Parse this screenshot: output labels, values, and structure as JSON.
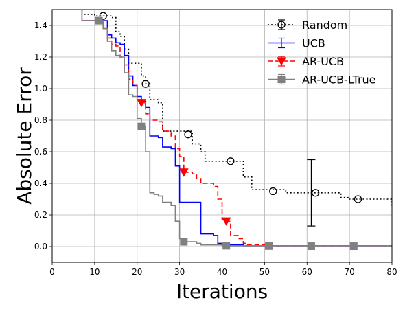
{
  "chart_data": {
    "type": "line",
    "title": "",
    "xlabel": "Iterations",
    "ylabel": "Absolute Error",
    "xlim": [
      0,
      80
    ],
    "ylim": [
      -0.1,
      1.5
    ],
    "x_ticks": [
      0,
      10,
      20,
      30,
      40,
      50,
      60,
      70,
      80
    ],
    "y_ticks": [
      0.0,
      0.2,
      0.4,
      0.6,
      0.8,
      1.0,
      1.2,
      1.4
    ],
    "grid": true,
    "legend_position": "top-right",
    "series": [
      {
        "name": "Random",
        "color": "#000000",
        "line_style": "dotted",
        "marker": "open-circle",
        "step": true,
        "x": [
          0,
          6,
          7,
          10,
          12,
          14,
          15,
          16,
          17,
          18,
          20,
          21,
          22,
          23,
          25,
          26,
          31,
          33,
          35,
          36,
          40,
          45,
          47,
          50,
          55,
          60,
          68,
          70,
          75,
          80
        ],
        "y": [
          1.55,
          1.55,
          1.47,
          1.46,
          1.46,
          1.45,
          1.36,
          1.33,
          1.25,
          1.16,
          1.16,
          1.08,
          1.03,
          0.93,
          0.91,
          0.73,
          0.73,
          0.65,
          0.6,
          0.54,
          0.54,
          0.44,
          0.36,
          0.36,
          0.34,
          0.34,
          0.31,
          0.3,
          0.3,
          0.25
        ],
        "markers": [
          [
            12,
            1.46
          ],
          [
            22,
            1.03
          ],
          [
            32,
            0.71
          ],
          [
            42,
            0.54
          ],
          [
            52,
            0.35
          ],
          [
            62,
            0.34
          ],
          [
            72,
            0.3
          ]
        ],
        "error_bar": {
          "x": 61,
          "low": 0.13,
          "high": 0.55
        }
      },
      {
        "name": "UCB",
        "color": "#0000ff",
        "line_style": "solid",
        "marker": "none",
        "step": true,
        "x": [
          0,
          6,
          7,
          11,
          13,
          14,
          15,
          16,
          17,
          18,
          19,
          20,
          21,
          22,
          23,
          25,
          26,
          28,
          29,
          30,
          33,
          35,
          38,
          39,
          40,
          45,
          80
        ],
        "y": [
          1.55,
          1.55,
          1.43,
          1.43,
          1.34,
          1.32,
          1.29,
          1.28,
          1.21,
          1.08,
          1.02,
          0.95,
          0.92,
          0.88,
          0.7,
          0.69,
          0.63,
          0.62,
          0.51,
          0.28,
          0.28,
          0.08,
          0.07,
          0.02,
          0.01,
          0.005,
          0.003
        ],
        "markers": []
      },
      {
        "name": "AR-UCB",
        "color": "#ff0000",
        "line_style": "dashed",
        "marker": "filled-triangle-down",
        "step": true,
        "x": [
          0,
          6,
          7,
          11,
          12,
          13,
          14,
          15,
          16,
          17,
          18,
          19,
          20,
          21,
          22,
          23,
          25,
          26,
          27,
          28,
          29,
          30,
          31,
          33,
          34,
          35,
          38,
          39,
          40,
          41,
          42,
          44,
          45,
          46,
          50,
          80
        ],
        "y": [
          1.55,
          1.55,
          1.43,
          1.43,
          1.38,
          1.32,
          1.28,
          1.27,
          1.2,
          1.15,
          1.06,
          1.02,
          0.93,
          0.91,
          0.84,
          0.8,
          0.79,
          0.73,
          0.73,
          0.7,
          0.62,
          0.57,
          0.47,
          0.46,
          0.43,
          0.4,
          0.38,
          0.3,
          0.17,
          0.16,
          0.07,
          0.05,
          0.02,
          0.01,
          0.005,
          0.003
        ],
        "markers": [
          [
            21,
            0.91
          ],
          [
            31,
            0.47
          ],
          [
            41,
            0.16
          ]
        ]
      },
      {
        "name": "AR-UCB-LTrue",
        "color": "#808080",
        "line_style": "solid",
        "marker": "filled-square",
        "step": true,
        "x": [
          0,
          6,
          7,
          11,
          12,
          13,
          14,
          15,
          16,
          17,
          18,
          19,
          20,
          21,
          22,
          23,
          24,
          25,
          26,
          27,
          28,
          29,
          30,
          31,
          33,
          34,
          35,
          40,
          80
        ],
        "y": [
          1.55,
          1.55,
          1.43,
          1.43,
          1.38,
          1.3,
          1.24,
          1.21,
          1.2,
          1.1,
          0.96,
          0.95,
          0.81,
          0.76,
          0.6,
          0.34,
          0.33,
          0.32,
          0.28,
          0.28,
          0.26,
          0.16,
          0.05,
          0.03,
          0.03,
          0.02,
          0.01,
          0.005,
          0.002
        ],
        "markers": [
          [
            11,
            1.43
          ],
          [
            21,
            0.76
          ],
          [
            31,
            0.03
          ],
          [
            41,
            0.005
          ],
          [
            51,
            0.003
          ],
          [
            61,
            0.002
          ],
          [
            71,
            0.002
          ]
        ]
      }
    ]
  }
}
